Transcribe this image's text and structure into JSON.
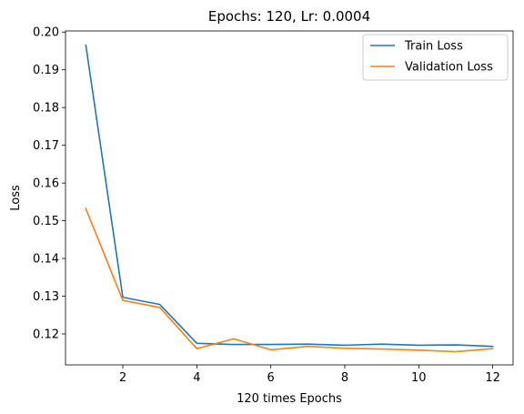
{
  "chart_data": {
    "type": "line",
    "title": "Epochs: 120, Lr: 0.0004",
    "xlabel": "120 times Epochs",
    "ylabel": "Loss",
    "xlim": [
      0.45,
      12.55
    ],
    "ylim": [
      0.1118,
      0.2003
    ],
    "xticks": [
      2,
      4,
      6,
      8,
      10,
      12
    ],
    "yticks": [
      0.12,
      0.13,
      0.14,
      0.15,
      0.16,
      0.17,
      0.18,
      0.19,
      0.2
    ],
    "ytick_labels": [
      "0.12",
      "0.13",
      "0.14",
      "0.15",
      "0.16",
      "0.17",
      "0.18",
      "0.19",
      "0.20"
    ],
    "legend_position": "top-right",
    "grid": false,
    "x": [
      1,
      2,
      3,
      4,
      5,
      6,
      7,
      8,
      9,
      10,
      11,
      12
    ],
    "series": [
      {
        "name": "Train Loss",
        "color": "#1f77b4",
        "values": [
          0.1965,
          0.1297,
          0.1278,
          0.1175,
          0.1172,
          0.1172,
          0.1173,
          0.117,
          0.1173,
          0.117,
          0.1171,
          0.1167
        ]
      },
      {
        "name": "Validation Loss",
        "color": "#ff7f0e",
        "values": [
          0.1532,
          0.1289,
          0.127,
          0.1161,
          0.1187,
          0.1158,
          0.1167,
          0.1162,
          0.116,
          0.1157,
          0.1153,
          0.1161
        ]
      }
    ]
  }
}
